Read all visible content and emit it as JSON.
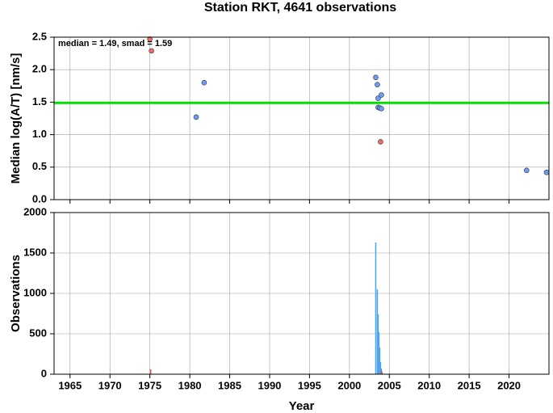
{
  "chart_data": [
    {
      "type": "scatter",
      "title": "Station RKT, 4641 observations",
      "ylabel": "Median log(A/T) [nm/s]",
      "annotation": "median = 1.49, smad = 1.59",
      "median_line": {
        "value": 1.49,
        "color": "#00e000"
      },
      "xlim": [
        1963,
        2025
      ],
      "xticks": [
        1965,
        1970,
        1975,
        1980,
        1985,
        1990,
        1995,
        2000,
        2005,
        2010,
        2015,
        2020
      ],
      "x_tick_labels": false,
      "ylim": [
        0,
        2.5
      ],
      "yticks": [
        {
          "value": 0,
          "label": "0.0"
        },
        0.5,
        {
          "value": 1,
          "label": "1.0"
        },
        1.5,
        {
          "value": 2,
          "label": "2.0"
        },
        2.5
      ],
      "grid": true,
      "series": [
        {
          "color": "#6f9cf7",
          "x": [
            1980.8,
            1981.8,
            2003.3,
            2003.5,
            2003.6,
            2003.6,
            2003.8,
            2004.0,
            2004.0,
            2022.2,
            2024.7
          ],
          "values": [
            1.27,
            1.8,
            1.88,
            1.77,
            1.56,
            1.42,
            1.41,
            1.61,
            1.4,
            0.45,
            0.42
          ]
        },
        {
          "color": "#f06a6a",
          "x": [
            1975.0,
            1975.2,
            2003.9
          ],
          "values": [
            2.47,
            2.29,
            0.89
          ]
        }
      ]
    },
    {
      "type": "bar",
      "ylabel": "Observations",
      "xlabel": "Year",
      "xlim": [
        1963,
        2025
      ],
      "xticks": [
        1965,
        1970,
        1975,
        1980,
        1985,
        1990,
        1995,
        2000,
        2005,
        2010,
        2015,
        2020
      ],
      "x_tick_labels": true,
      "ylim": [
        0,
        2000
      ],
      "yticks": [
        0,
        500,
        1000,
        1500,
        2000
      ],
      "grid": true,
      "series": [
        {
          "color": "#4aa6f5",
          "x": [
            1980.9,
            2003.3,
            2003.5,
            2003.6,
            2003.7,
            2003.8,
            2003.9,
            2004.0,
            2004.1,
            2022.2
          ],
          "values": [
            5,
            1630,
            1050,
            740,
            520,
            330,
            150,
            70,
            30,
            5
          ]
        },
        {
          "color": "#e04848",
          "x": [
            1975.1,
            2004.0
          ],
          "values": [
            60,
            50
          ]
        }
      ]
    }
  ]
}
